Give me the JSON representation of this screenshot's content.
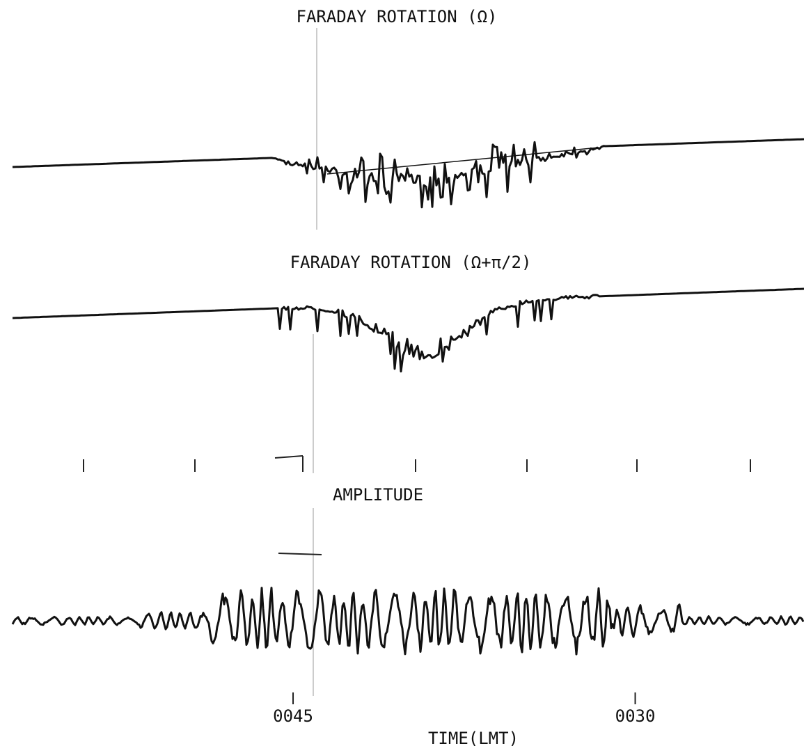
{
  "chart_data": {
    "type": "line",
    "panels": [
      {
        "title": "FARADAY ROTATION (Ω)"
      },
      {
        "title": "FARADAY ROTATION (Ω+π/2)"
      },
      {
        "title": "AMPLITUDE"
      }
    ],
    "xlabel": "TIME(LMT)",
    "xlim": [
      57.3,
      22.6
    ],
    "xticks": [
      {
        "value": 45,
        "label": "0045"
      },
      {
        "value": 30,
        "label": "0030"
      }
    ]
  }
}
